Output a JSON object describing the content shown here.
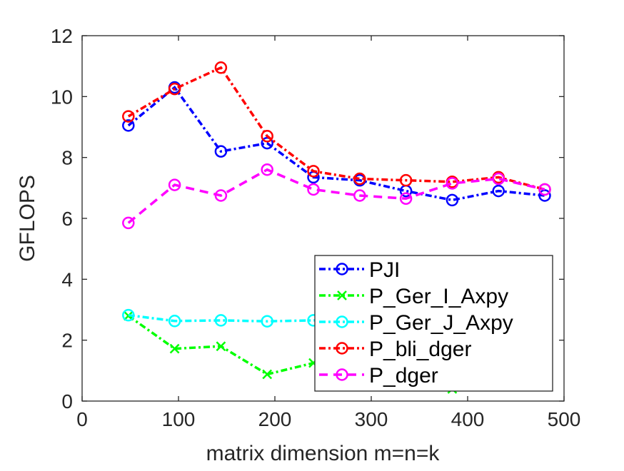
{
  "chart_data": {
    "type": "line",
    "title": "",
    "xlabel": "matrix dimension m=n=k",
    "ylabel": "GFLOPS",
    "xlim": [
      0,
      500
    ],
    "ylim": [
      0,
      12
    ],
    "xticks": [
      0,
      100,
      200,
      300,
      400,
      500
    ],
    "yticks": [
      0,
      2,
      4,
      6,
      8,
      10,
      12
    ],
    "grid": false,
    "legend_position": "bottom-right",
    "x": [
      48,
      96,
      144,
      192,
      240,
      288,
      336,
      384,
      432,
      480
    ],
    "series": [
      {
        "name": "PJI",
        "color": "#0000ff",
        "marker": "circle",
        "dash": "dashdot",
        "values": [
          9.05,
          10.3,
          8.2,
          8.47,
          7.35,
          7.25,
          6.9,
          6.6,
          6.9,
          6.75
        ]
      },
      {
        "name": "P_Ger_I_Axpy",
        "color": "#00ff00",
        "marker": "x",
        "dash": "dashdot",
        "values": [
          2.8,
          1.72,
          1.8,
          0.88,
          1.25,
          0.9,
          0.7,
          0.4,
          0.8,
          0.7
        ]
      },
      {
        "name": "P_Ger_J_Axpy",
        "color": "#00ffff",
        "marker": "circle",
        "dash": "dashdot",
        "values": [
          2.82,
          2.63,
          2.65,
          2.62,
          2.65,
          2.65,
          2.65,
          2.65,
          2.65,
          2.65
        ]
      },
      {
        "name": "P_bli_dger",
        "color": "#ff0000",
        "marker": "circle",
        "dash": "dashdot",
        "values": [
          9.35,
          10.25,
          10.95,
          8.7,
          7.55,
          7.3,
          7.25,
          7.2,
          7.35,
          6.95
        ]
      },
      {
        "name": "P_dger",
        "color": "#ff00ff",
        "marker": "circle",
        "dash": "dash",
        "values": [
          5.85,
          7.1,
          6.75,
          7.6,
          6.95,
          6.75,
          6.65,
          7.15,
          7.3,
          6.95
        ]
      }
    ]
  }
}
